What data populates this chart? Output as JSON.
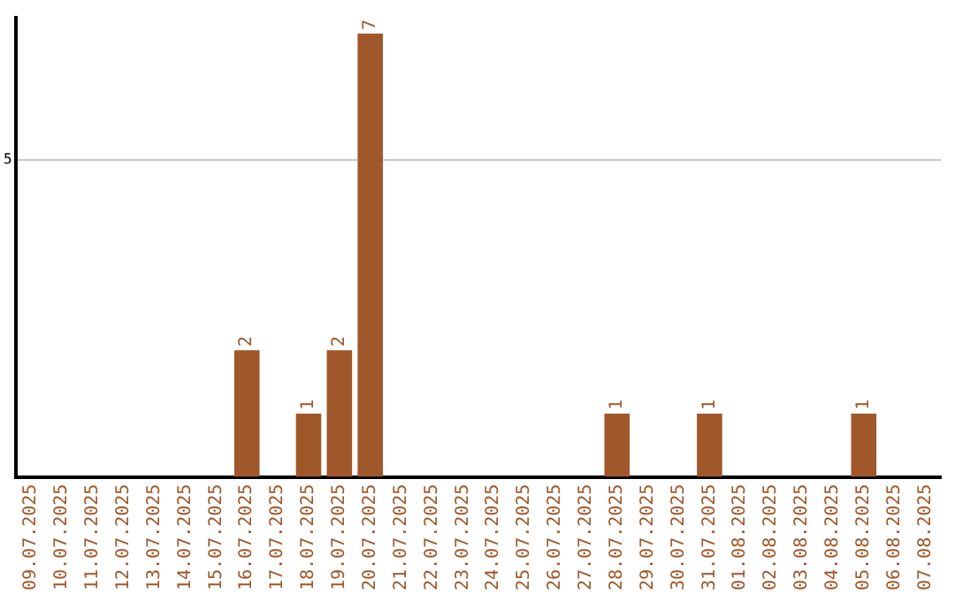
{
  "chart_data": {
    "type": "bar",
    "categories": [
      "09.07.2025",
      "10.07.2025",
      "11.07.2025",
      "12.07.2025",
      "13.07.2025",
      "14.07.2025",
      "15.07.2025",
      "16.07.2025",
      "17.07.2025",
      "18.07.2025",
      "19.07.2025",
      "20.07.2025",
      "21.07.2025",
      "22.07.2025",
      "23.07.2025",
      "24.07.2025",
      "25.07.2025",
      "26.07.2025",
      "27.07.2025",
      "28.07.2025",
      "29.07.2025",
      "30.07.2025",
      "31.07.2025",
      "01.08.2025",
      "02.08.2025",
      "03.08.2025",
      "04.08.2025",
      "05.08.2025",
      "06.08.2025",
      "07.08.2025"
    ],
    "values": [
      0,
      0,
      0,
      0,
      0,
      0,
      0,
      2,
      0,
      1,
      2,
      7,
      0,
      0,
      0,
      0,
      0,
      0,
      0,
      1,
      0,
      0,
      1,
      0,
      0,
      0,
      0,
      1,
      0,
      0
    ],
    "value_labels": [
      null,
      null,
      null,
      null,
      null,
      null,
      null,
      "2",
      null,
      "1",
      "2",
      "7",
      null,
      null,
      null,
      null,
      null,
      null,
      null,
      "1",
      null,
      null,
      "1",
      null,
      null,
      null,
      null,
      "1",
      null,
      null
    ],
    "color": "#a0572a",
    "ylim": [
      0,
      7.25
    ],
    "yticks": [
      5
    ],
    "grid": "y",
    "legend": false
  }
}
